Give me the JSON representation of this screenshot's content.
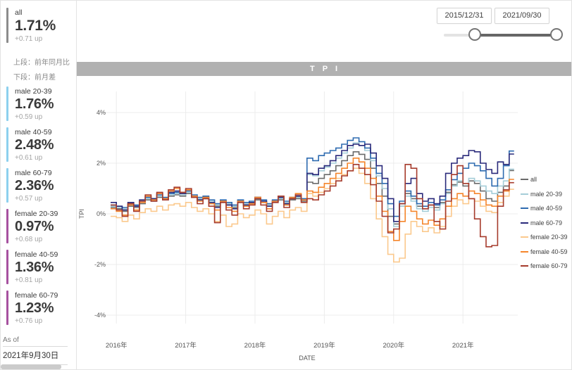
{
  "summary": {
    "label": "all",
    "value": "1.71%",
    "delta": "+0.71 up",
    "accent": "#8c8c8c"
  },
  "note": {
    "line1": "上段：前年同月比",
    "line2": "下段：前月差"
  },
  "stats": [
    {
      "label": "male 20-39",
      "value": "1.76%",
      "delta": "+0.59 up",
      "accent": "#8dd0ee"
    },
    {
      "label": "male 40-59",
      "value": "2.48%",
      "delta": "+0.61 up",
      "accent": "#8dd0ee"
    },
    {
      "label": "male 60-79",
      "value": "2.36%",
      "delta": "+0.57 up",
      "accent": "#8dd0ee"
    },
    {
      "label": "female 20-39",
      "value": "0.97%",
      "delta": "+0.68 up",
      "accent": "#a6519f"
    },
    {
      "label": "female 40-59",
      "value": "1.36%",
      "delta": "+0.81 up",
      "accent": "#a6519f"
    },
    {
      "label": "female 60-79",
      "value": "1.23%",
      "delta": "+0.76 up",
      "accent": "#a6519f"
    }
  ],
  "as_of": {
    "label": "As of",
    "date": "2021年9月30日"
  },
  "range_slider": {
    "start": "2015/12/31",
    "end": "2021/09/30"
  },
  "chart_title": "T P I",
  "chart_data": {
    "type": "line",
    "step": true,
    "title": "TPI",
    "xlabel": "DATE",
    "ylabel": "TPI",
    "x_start": "2015-12",
    "x_end": "2021-09",
    "x_interval": "month",
    "ylim": [
      -4.9,
      4.9
    ],
    "yticks": [
      4,
      2,
      0,
      -2,
      -4
    ],
    "ytick_labels": [
      "4%",
      "2%",
      "0%",
      "-2%",
      "-4%"
    ],
    "grid": true,
    "legend_position": "right",
    "year_ticks": {
      "indices": [
        1,
        13,
        25,
        37,
        49,
        61
      ],
      "labels": [
        "2016年",
        "2017年",
        "2018年",
        "2019年",
        "2020年",
        "2021年"
      ]
    },
    "series": [
      {
        "name": "all",
        "color": "#6b6b6b",
        "values": [
          0.25,
          0.2,
          0.1,
          0.3,
          0.25,
          0.4,
          0.55,
          0.5,
          0.65,
          0.55,
          0.7,
          0.75,
          0.7,
          0.8,
          0.65,
          0.55,
          0.6,
          0.45,
          0.3,
          0.45,
          0.35,
          0.25,
          0.45,
          0.35,
          0.4,
          0.55,
          0.45,
          0.3,
          0.45,
          0.55,
          0.4,
          0.55,
          0.6,
          0.5,
          1.25,
          1.2,
          1.4,
          1.55,
          1.7,
          1.9,
          2.1,
          2.3,
          2.45,
          2.35,
          2.15,
          1.8,
          1.2,
          0.7,
          -0.1,
          -0.4,
          0.3,
          0.8,
          0.6,
          0.3,
          0.2,
          0.35,
          0.25,
          0.45,
          0.85,
          1.15,
          1.25,
          1.1,
          1.3,
          1.2,
          0.9,
          0.6,
          0.5,
          0.85,
          1.1,
          1.71
        ]
      },
      {
        "name": "male 20-39",
        "color": "#a5cdd8",
        "values": [
          0.3,
          0.25,
          0.2,
          0.35,
          0.3,
          0.45,
          0.6,
          0.55,
          0.7,
          0.6,
          0.75,
          0.8,
          0.75,
          0.85,
          0.7,
          0.6,
          0.65,
          0.5,
          0.35,
          0.5,
          0.4,
          0.3,
          0.5,
          0.4,
          0.45,
          0.6,
          0.5,
          0.35,
          0.5,
          0.6,
          0.45,
          0.6,
          0.65,
          0.55,
          1.55,
          1.5,
          1.7,
          1.85,
          2.0,
          2.2,
          2.4,
          2.6,
          2.8,
          2.7,
          2.5,
          2.1,
          1.5,
          1.0,
          0.2,
          -0.5,
          0.3,
          0.7,
          0.5,
          0.2,
          0.1,
          0.25,
          0.15,
          0.4,
          0.8,
          1.1,
          1.3,
          1.2,
          1.4,
          1.3,
          1.1,
          0.9,
          0.8,
          1.1,
          1.3,
          1.76
        ]
      },
      {
        "name": "male 40-59",
        "color": "#2e6bb0",
        "values": [
          0.35,
          0.3,
          0.25,
          0.4,
          0.35,
          0.5,
          0.65,
          0.6,
          0.75,
          0.65,
          0.8,
          0.85,
          0.8,
          0.9,
          0.75,
          0.65,
          0.7,
          0.55,
          0.4,
          0.55,
          0.45,
          0.35,
          0.55,
          0.45,
          0.5,
          0.65,
          0.55,
          0.4,
          0.55,
          0.65,
          0.5,
          0.65,
          0.7,
          0.6,
          2.2,
          2.1,
          2.3,
          2.4,
          2.5,
          2.6,
          2.75,
          2.9,
          3.0,
          2.85,
          2.6,
          2.2,
          1.6,
          1.2,
          0.4,
          -0.1,
          0.5,
          0.9,
          0.7,
          0.4,
          0.3,
          0.45,
          0.35,
          0.55,
          0.95,
          1.35,
          1.6,
          1.8,
          2.0,
          1.9,
          1.7,
          1.4,
          1.1,
          1.4,
          1.9,
          2.48
        ]
      },
      {
        "name": "male 60-79",
        "color": "#29297a",
        "values": [
          0.45,
          0.3,
          0.15,
          0.45,
          0.3,
          0.55,
          0.7,
          0.6,
          0.8,
          0.6,
          0.85,
          0.9,
          0.8,
          0.95,
          0.7,
          0.55,
          0.65,
          0.45,
          0.25,
          0.5,
          0.35,
          0.2,
          0.5,
          0.35,
          0.45,
          0.65,
          0.5,
          0.3,
          0.5,
          0.65,
          0.4,
          0.6,
          0.7,
          0.55,
          1.6,
          1.55,
          1.8,
          1.9,
          2.1,
          2.3,
          2.5,
          2.7,
          2.75,
          2.7,
          2.75,
          2.4,
          1.9,
          1.4,
          0.6,
          -0.3,
          0.4,
          1.2,
          1.4,
          0.8,
          0.5,
          0.6,
          0.4,
          0.7,
          1.6,
          2.0,
          2.2,
          2.3,
          2.5,
          2.45,
          2.0,
          1.75,
          1.6,
          2.05,
          1.95,
          2.36
        ]
      },
      {
        "name": "female 20-39",
        "color": "#fbc98d",
        "values": [
          -0.1,
          -0.15,
          -0.3,
          -0.05,
          -0.2,
          0.05,
          0.2,
          0.1,
          0.3,
          0.15,
          0.35,
          0.4,
          0.3,
          0.45,
          0.25,
          0.1,
          0.2,
          0.0,
          -0.3,
          -0.05,
          -0.5,
          -0.4,
          0.0,
          -0.15,
          -0.05,
          0.15,
          0.0,
          -0.4,
          -0.1,
          0.1,
          -0.15,
          0.15,
          0.25,
          0.1,
          0.8,
          0.7,
          0.85,
          1.0,
          1.2,
          1.4,
          1.55,
          1.7,
          1.8,
          1.6,
          1.2,
          0.6,
          -0.2,
          -0.9,
          -1.6,
          -1.9,
          -1.75,
          -0.8,
          -0.3,
          -0.5,
          -0.7,
          -0.55,
          -0.75,
          -0.5,
          -0.1,
          0.3,
          0.55,
          0.4,
          0.6,
          0.5,
          0.3,
          0.1,
          0.05,
          0.45,
          0.7,
          0.97
        ]
      },
      {
        "name": "female 40-59",
        "color": "#f5862c",
        "values": [
          0.2,
          0.1,
          -0.05,
          0.35,
          0.15,
          0.45,
          0.7,
          0.55,
          0.8,
          0.6,
          0.9,
          1.0,
          0.85,
          0.95,
          0.7,
          0.5,
          0.65,
          0.4,
          0.15,
          0.5,
          0.25,
          0.1,
          0.5,
          0.3,
          0.4,
          0.65,
          0.45,
          0.2,
          0.5,
          0.7,
          0.35,
          0.65,
          0.8,
          0.55,
          0.9,
          0.85,
          1.05,
          1.2,
          1.4,
          1.6,
          1.8,
          2.0,
          2.2,
          2.05,
          1.8,
          1.4,
          0.7,
          0.1,
          -0.7,
          -1.05,
          -0.3,
          0.3,
          0.1,
          -0.2,
          -0.4,
          -0.25,
          -0.45,
          -0.2,
          0.3,
          0.6,
          0.8,
          0.7,
          0.9,
          0.8,
          0.55,
          0.35,
          0.3,
          0.7,
          0.9,
          1.36
        ]
      },
      {
        "name": "female 60-79",
        "color": "#a63b2c",
        "values": [
          0.35,
          0.15,
          -0.1,
          0.4,
          0.1,
          0.5,
          0.75,
          0.5,
          0.85,
          0.55,
          0.95,
          1.05,
          0.85,
          1.0,
          0.65,
          0.4,
          0.6,
          0.3,
          -0.35,
          0.45,
          0.15,
          -0.05,
          0.45,
          0.2,
          0.35,
          0.6,
          0.35,
          0.1,
          0.45,
          0.7,
          0.25,
          0.6,
          0.75,
          0.45,
          0.6,
          0.55,
          0.75,
          0.9,
          1.1,
          1.3,
          1.5,
          1.7,
          1.95,
          1.8,
          1.55,
          1.15,
          0.5,
          -0.1,
          -0.75,
          -0.6,
          0.4,
          1.95,
          1.8,
          0.6,
          0.2,
          0.35,
          -0.3,
          -0.6,
          0.5,
          1.55,
          1.9,
          1.2,
          0.6,
          -0.2,
          -0.9,
          -1.3,
          -1.25,
          0.3,
          0.95,
          1.23
        ]
      }
    ]
  }
}
